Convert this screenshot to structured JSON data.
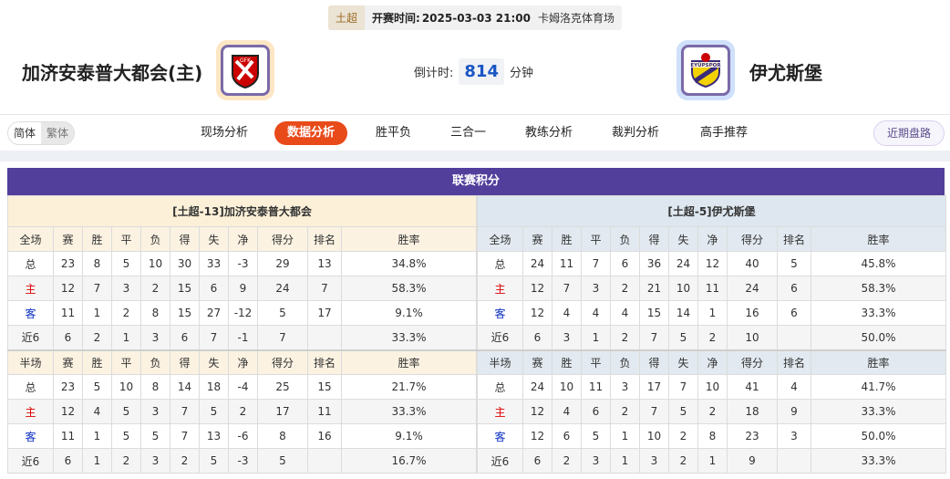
{
  "match": {
    "league": "土超",
    "time_label": "开赛时间:",
    "time": "2025-03-03 21:00",
    "venue": "卡姆洛克体育场",
    "home_team": "加济安泰普大都会(主)",
    "away_team": "伊尤斯堡",
    "home_logo_text": "GFK",
    "away_logo_text": "EYÜPSPOR",
    "countdown_label": "倒计时:",
    "countdown": "814",
    "countdown_unit": "分钟"
  },
  "lang": {
    "simplified": "简体",
    "traditional": "繁体"
  },
  "nav": [
    {
      "label": "现场分析"
    },
    {
      "label": "数据分析",
      "active": true
    },
    {
      "label": "胜平负"
    },
    {
      "label": "三合一"
    },
    {
      "label": "教练分析"
    },
    {
      "label": "裁判分析"
    },
    {
      "label": "高手推荐"
    }
  ],
  "recent_button": "近期盘路",
  "colors": {
    "header": "#523f9c",
    "active_tab": "#e84a1a",
    "home": "#dd0000",
    "away": "#0b2fc0"
  },
  "standings": {
    "title": "联赛积分",
    "full_headers": [
      "全场",
      "赛",
      "胜",
      "平",
      "负",
      "得",
      "失",
      "净",
      "得分",
      "排名",
      "胜率"
    ],
    "half_headers": [
      "半场",
      "赛",
      "胜",
      "平",
      "负",
      "得",
      "失",
      "净",
      "得分",
      "排名",
      "胜率"
    ],
    "teams": [
      {
        "label": "[土超-13]加济安泰普大都会",
        "full": [
          [
            "总",
            "23",
            "8",
            "5",
            "10",
            "30",
            "33",
            "-3",
            "29",
            "13",
            "34.8%"
          ],
          [
            "主",
            "12",
            "7",
            "3",
            "2",
            "15",
            "6",
            "9",
            "24",
            "7",
            "58.3%"
          ],
          [
            "客",
            "11",
            "1",
            "2",
            "8",
            "15",
            "27",
            "-12",
            "5",
            "17",
            "9.1%"
          ],
          [
            "近6",
            "6",
            "2",
            "1",
            "3",
            "6",
            "7",
            "-1",
            "7",
            "",
            "33.3%"
          ]
        ],
        "half": [
          [
            "总",
            "23",
            "5",
            "10",
            "8",
            "14",
            "18",
            "-4",
            "25",
            "15",
            "21.7%"
          ],
          [
            "主",
            "12",
            "4",
            "5",
            "3",
            "7",
            "5",
            "2",
            "17",
            "11",
            "33.3%"
          ],
          [
            "客",
            "11",
            "1",
            "5",
            "5",
            "7",
            "13",
            "-6",
            "8",
            "16",
            "9.1%"
          ],
          [
            "近6",
            "6",
            "1",
            "2",
            "3",
            "2",
            "5",
            "-3",
            "5",
            "",
            "16.7%"
          ]
        ]
      },
      {
        "label": "[土超-5]伊尤斯堡",
        "full": [
          [
            "总",
            "24",
            "11",
            "7",
            "6",
            "36",
            "24",
            "12",
            "40",
            "5",
            "45.8%"
          ],
          [
            "主",
            "12",
            "7",
            "3",
            "2",
            "21",
            "10",
            "11",
            "24",
            "6",
            "58.3%"
          ],
          [
            "客",
            "12",
            "4",
            "4",
            "4",
            "15",
            "14",
            "1",
            "16",
            "6",
            "33.3%"
          ],
          [
            "近6",
            "6",
            "3",
            "1",
            "2",
            "7",
            "5",
            "2",
            "10",
            "",
            "50.0%"
          ]
        ],
        "half": [
          [
            "总",
            "24",
            "10",
            "11",
            "3",
            "17",
            "7",
            "10",
            "41",
            "4",
            "41.7%"
          ],
          [
            "主",
            "12",
            "4",
            "6",
            "2",
            "7",
            "5",
            "2",
            "18",
            "9",
            "33.3%"
          ],
          [
            "客",
            "12",
            "6",
            "5",
            "1",
            "10",
            "2",
            "8",
            "23",
            "3",
            "50.0%"
          ],
          [
            "近6",
            "6",
            "2",
            "3",
            "1",
            "3",
            "2",
            "1",
            "9",
            "",
            "33.3%"
          ]
        ]
      }
    ]
  }
}
